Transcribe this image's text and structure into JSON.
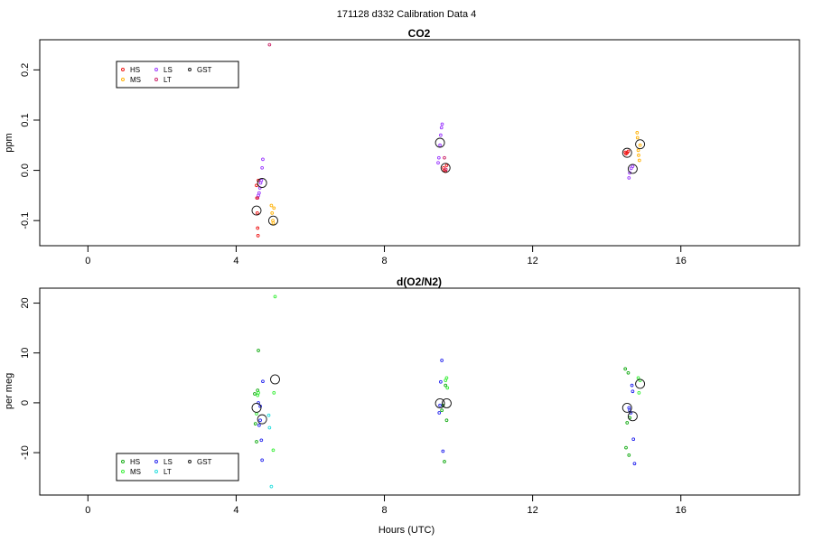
{
  "figure": {
    "title": "171128   d332   Calibration Data 4"
  },
  "colors": {
    "HS": "#ee1111",
    "MS": "#ffb000",
    "LS": "#9933ff",
    "LT": "#cc2266",
    "GST": "#111111",
    "HS_o2": "#11aa11",
    "MS_o2": "#33ee33",
    "LS_o2": "#2222ee",
    "LT_o2": "#22dddd",
    "GST_o2": "#111111"
  },
  "chart_data": [
    {
      "type": "scatter",
      "title": "CO2",
      "xlabel": "",
      "ylabel": "ppm",
      "xlim": [
        -1.3,
        19.2
      ],
      "ylim": [
        -0.15,
        0.26
      ],
      "x_ticks": [
        0,
        4,
        8,
        12,
        16
      ],
      "x_tick_labels": [
        "0",
        "4",
        "8",
        "12",
        "16"
      ],
      "y_ticks": [
        -0.1,
        0.0,
        0.1,
        0.2
      ],
      "y_tick_labels": [
        "-0.1",
        "0.0",
        "0.1",
        "0.2"
      ],
      "grid": false,
      "legend": {
        "placement": "top-left",
        "entries": [
          "HS",
          "MS",
          "LS",
          "LT",
          "GST"
        ]
      },
      "series": [
        {
          "name": "HS",
          "color_key": "HS",
          "points": [
            [
              4.55,
              -0.03
            ],
            [
              4.56,
              -0.055
            ],
            [
              4.57,
              -0.085
            ],
            [
              4.58,
              -0.115
            ],
            [
              4.59,
              -0.13
            ],
            [
              4.6,
              -0.02
            ],
            [
              9.6,
              0.005
            ],
            [
              9.62,
              0.0
            ],
            [
              9.65,
              -0.002
            ],
            [
              9.68,
              0.01
            ],
            [
              14.5,
              0.036
            ],
            [
              14.52,
              0.033
            ],
            [
              14.55,
              0.035
            ],
            [
              14.58,
              0.038
            ]
          ]
        },
        {
          "name": "MS",
          "color_key": "MS",
          "points": [
            [
              4.95,
              -0.07
            ],
            [
              4.97,
              -0.085
            ],
            [
              4.99,
              -0.1
            ],
            [
              5.0,
              -0.105
            ],
            [
              5.02,
              -0.075
            ],
            [
              14.82,
              0.075
            ],
            [
              14.83,
              0.065
            ],
            [
              14.85,
              0.04
            ],
            [
              14.86,
              0.03
            ],
            [
              14.88,
              0.02
            ],
            [
              14.9,
              0.05
            ]
          ]
        },
        {
          "name": "LS",
          "color_key": "LS",
          "points": [
            [
              4.62,
              -0.045
            ],
            [
              4.64,
              -0.035
            ],
            [
              4.66,
              -0.025
            ],
            [
              4.68,
              -0.02
            ],
            [
              4.7,
              0.005
            ],
            [
              4.72,
              0.022
            ],
            [
              4.6,
              -0.05
            ],
            [
              9.45,
              0.015
            ],
            [
              9.47,
              0.025
            ],
            [
              9.5,
              0.05
            ],
            [
              9.52,
              0.07
            ],
            [
              9.54,
              0.085
            ],
            [
              9.56,
              0.092
            ],
            [
              14.6,
              -0.015
            ],
            [
              14.62,
              -0.005
            ],
            [
              14.66,
              0.004
            ],
            [
              14.7,
              0.008
            ]
          ]
        },
        {
          "name": "LT",
          "color_key": "LT",
          "points": [
            [
              4.9,
              0.25
            ],
            [
              4.58,
              -0.055
            ],
            [
              9.62,
              0.025
            ],
            [
              9.66,
              0.002
            ]
          ]
        },
        {
          "name": "GST",
          "color_key": "GST",
          "marker": "large-circle",
          "points": [
            [
              4.55,
              -0.08
            ],
            [
              4.7,
              -0.025
            ],
            [
              5.0,
              -0.1
            ],
            [
              9.5,
              0.055
            ],
            [
              9.65,
              0.005
            ],
            [
              14.55,
              0.035
            ],
            [
              14.7,
              0.003
            ],
            [
              14.9,
              0.052
            ]
          ]
        }
      ]
    },
    {
      "type": "scatter",
      "title": "d(O2/N2)",
      "xlabel": "Hours (UTC)",
      "ylabel": "per meg",
      "xlim": [
        -1.3,
        19.2
      ],
      "ylim": [
        -18.5,
        23.0
      ],
      "x_ticks": [
        0,
        4,
        8,
        12,
        16
      ],
      "x_tick_labels": [
        "0",
        "4",
        "8",
        "12",
        "16"
      ],
      "y_ticks": [
        -10,
        0,
        10,
        20
      ],
      "y_tick_labels": [
        "-10",
        "0",
        "10",
        "20"
      ],
      "grid": false,
      "legend": {
        "placement": "bottom-left",
        "entries": [
          "HS",
          "MS",
          "LS",
          "LT",
          "GST"
        ]
      },
      "series": [
        {
          "name": "HS",
          "color_key": "HS_o2",
          "points": [
            [
              4.5,
              1.8
            ],
            [
              4.52,
              -4.2
            ],
            [
              4.55,
              -7.8
            ],
            [
              4.58,
              2.5
            ],
            [
              4.6,
              10.5
            ],
            [
              9.55,
              -1.5
            ],
            [
              9.58,
              -0.5
            ],
            [
              9.62,
              -11.8
            ],
            [
              9.65,
              3.5
            ],
            [
              9.68,
              -3.5
            ],
            [
              14.5,
              6.8
            ],
            [
              14.52,
              -9.0
            ],
            [
              14.55,
              -4.0
            ],
            [
              14.58,
              6.0
            ],
            [
              14.6,
              -10.5
            ],
            [
              14.62,
              -3.0
            ]
          ]
        },
        {
          "name": "MS",
          "color_key": "MS_o2",
          "points": [
            [
              4.55,
              -2.2
            ],
            [
              4.58,
              1.5
            ],
            [
              4.6,
              2.0
            ],
            [
              5.0,
              -9.5
            ],
            [
              5.02,
              2.0
            ],
            [
              5.05,
              21.3
            ],
            [
              9.65,
              4.5
            ],
            [
              9.68,
              5.0
            ],
            [
              9.7,
              3.0
            ],
            [
              14.85,
              5.0
            ],
            [
              14.87,
              2.0
            ],
            [
              14.9,
              4.5
            ]
          ]
        },
        {
          "name": "LS",
          "color_key": "LS_o2",
          "points": [
            [
              4.62,
              -4.5
            ],
            [
              4.65,
              -3.5
            ],
            [
              4.68,
              -7.5
            ],
            [
              4.7,
              -11.5
            ],
            [
              4.72,
              4.3
            ],
            [
              4.6,
              0.0
            ],
            [
              4.65,
              -0.7
            ],
            [
              9.48,
              -2.0
            ],
            [
              9.5,
              -0.5
            ],
            [
              9.52,
              4.2
            ],
            [
              9.55,
              8.5
            ],
            [
              9.58,
              -9.7
            ],
            [
              14.6,
              -1.0
            ],
            [
              14.65,
              -2.0
            ],
            [
              14.68,
              3.5
            ],
            [
              14.7,
              2.3
            ],
            [
              14.72,
              -7.3
            ],
            [
              14.75,
              -12.2
            ],
            [
              14.62,
              -1.5
            ]
          ]
        },
        {
          "name": "LT",
          "color_key": "LT_o2",
          "points": [
            [
              4.88,
              -2.5
            ],
            [
              4.9,
              -5.0
            ],
            [
              4.95,
              -16.8
            ]
          ]
        },
        {
          "name": "GST",
          "color_key": "GST_o2",
          "marker": "large-circle",
          "points": [
            [
              4.55,
              -1.0
            ],
            [
              4.7,
              -3.3
            ],
            [
              5.05,
              4.7
            ],
            [
              9.5,
              -0.1
            ],
            [
              9.68,
              -0.1
            ],
            [
              14.55,
              -1.0
            ],
            [
              14.7,
              -2.7
            ],
            [
              14.9,
              3.8
            ]
          ]
        }
      ]
    }
  ]
}
